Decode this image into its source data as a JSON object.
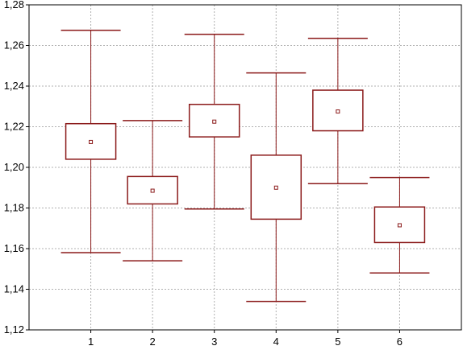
{
  "chart_data": {
    "type": "boxplot",
    "categories": [
      "1",
      "2",
      "3",
      "4",
      "5",
      "6"
    ],
    "boxes": [
      {
        "category": "1",
        "median": 1.2125,
        "box_low": 1.204,
        "box_high": 1.2215,
        "whisker_low": 1.158,
        "whisker_high": 1.2675
      },
      {
        "category": "2",
        "median": 1.1885,
        "box_low": 1.182,
        "box_high": 1.1955,
        "whisker_low": 1.154,
        "whisker_high": 1.223
      },
      {
        "category": "3",
        "median": 1.2225,
        "box_low": 1.215,
        "box_high": 1.231,
        "whisker_low": 1.1795,
        "whisker_high": 1.2655
      },
      {
        "category": "4",
        "median": 1.19,
        "box_low": 1.1745,
        "box_high": 1.206,
        "whisker_low": 1.134,
        "whisker_high": 1.2465
      },
      {
        "category": "5",
        "median": 1.2275,
        "box_low": 1.218,
        "box_high": 1.238,
        "whisker_low": 1.192,
        "whisker_high": 1.2635
      },
      {
        "category": "6",
        "median": 1.1715,
        "box_low": 1.163,
        "box_high": 1.1805,
        "whisker_low": 1.148,
        "whisker_high": 1.195
      }
    ],
    "y_ticks": [
      "1,12",
      "1,14",
      "1,16",
      "1,18",
      "1,20",
      "1,22",
      "1,24",
      "1,26",
      "1,28"
    ],
    "x_ticks": [
      "1",
      "2",
      "3",
      "4",
      "5",
      "6"
    ],
    "ylim": [
      1.12,
      1.28
    ],
    "xlim": [
      0,
      7
    ],
    "title": "",
    "xlabel": "",
    "ylabel": "",
    "grid": true,
    "colors": {
      "series": "#8b1a1a",
      "grid": "#b0b0b0",
      "axis": "#000000"
    }
  }
}
